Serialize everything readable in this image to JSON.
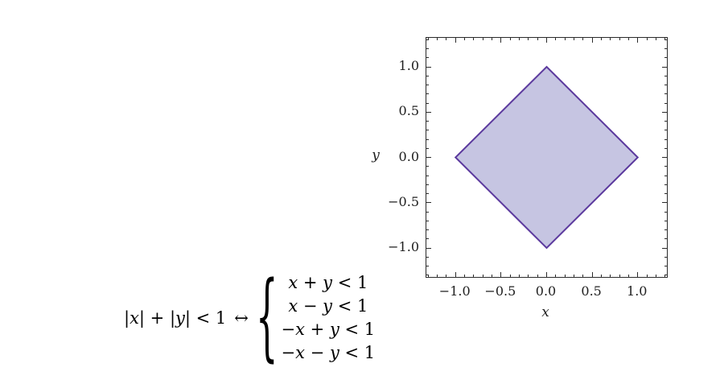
{
  "equation": {
    "lhs": "|x| + |y| < 1",
    "arrow": "↔",
    "brace": "{",
    "cases": [
      "x + y < 1",
      "x − y < 1",
      "−x + y < 1",
      "−x − y < 1"
    ]
  },
  "chart_data": {
    "type": "area",
    "title": "",
    "subtitle": "",
    "xlabel": "x",
    "ylabel": "y",
    "xlim": [
      -1.32,
      1.32
    ],
    "ylim": [
      -1.32,
      1.32
    ],
    "grid": false,
    "frame": true,
    "legend": null,
    "minor_tick_step": 0.1,
    "x_ticks": {
      "values": [
        -1.0,
        -0.5,
        0.0,
        0.5,
        1.0
      ],
      "labels": [
        "−1.0",
        "−0.5",
        "0.0",
        "0.5",
        "1.0"
      ]
    },
    "y_ticks": {
      "values": [
        -1.0,
        -0.5,
        0.0,
        0.5,
        1.0
      ],
      "labels": [
        "−1.0",
        "−0.5",
        "0.0",
        "0.5",
        "1.0"
      ]
    },
    "region": {
      "label": "|x| + |y| < 1",
      "vertices": [
        [
          0,
          1
        ],
        [
          1,
          0
        ],
        [
          0,
          -1
        ],
        [
          -1,
          0
        ]
      ],
      "fill_color": "#c6c5e2",
      "edge_color": "#5c3a9e",
      "edge_width": 2
    },
    "frame_color": "#2b2b2b",
    "text_color": "#1f1f1f"
  }
}
